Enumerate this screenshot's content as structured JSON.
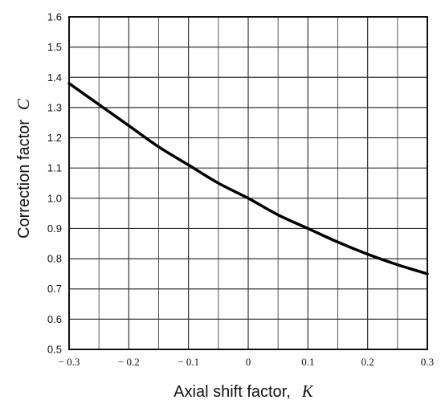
{
  "chart_data": {
    "type": "line",
    "title": "",
    "xlabel": "Axial shift factor,",
    "xlabel_symbol": "K",
    "ylabel": "Correction factor",
    "ylabel_symbol": "C",
    "xlim": [
      -0.3,
      0.3
    ],
    "ylim": [
      0.5,
      1.6
    ],
    "grid": true,
    "x_ticks": [
      -0.3,
      -0.2,
      -0.1,
      0,
      0.1,
      0.2,
      0.3
    ],
    "x_tick_labels": [
      "− 0.3",
      "− 0.2",
      "− 0.1",
      "0",
      "0.1",
      "0.2",
      "0.3"
    ],
    "y_ticks": [
      0.5,
      0.6,
      0.7,
      0.8,
      0.9,
      1.0,
      1.1,
      1.2,
      1.3,
      1.4,
      1.5,
      1.6
    ],
    "y_tick_labels": [
      "0.5",
      "0.6",
      "0.7",
      "0.8",
      "0.9",
      "1.0",
      "1.1",
      "1.2",
      "1.3",
      "1.4",
      "1.5",
      "1.6"
    ],
    "series": [
      {
        "x": [
          -0.3,
          -0.25,
          -0.2,
          -0.15,
          -0.1,
          -0.05,
          0,
          0.05,
          0.1,
          0.15,
          0.2,
          0.25,
          0.3
        ],
        "y": [
          1.38,
          1.31,
          1.24,
          1.17,
          1.11,
          1.05,
          1.0,
          0.945,
          0.9,
          0.855,
          0.815,
          0.78,
          0.75
        ]
      }
    ]
  }
}
